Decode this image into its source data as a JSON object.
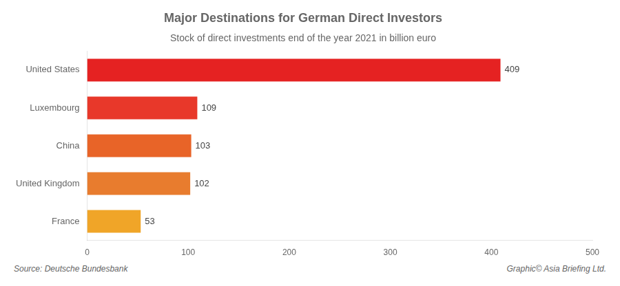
{
  "chart_data": {
    "type": "bar",
    "orientation": "horizontal",
    "title": "Major Destinations for German Direct Investors",
    "subtitle": "Stock of direct investments end of the year 2021 in billion euro",
    "annotations": [
      "Source: Deutsche Bundesbank",
      "Graphic© Asia Briefing Ltd."
    ],
    "categories": [
      "United States",
      "Luxembourg",
      "China",
      "United Kingdom",
      "France"
    ],
    "values": [
      409,
      109,
      103,
      102,
      53
    ],
    "colors": [
      "#e52222",
      "#e8382a",
      "#e86428",
      "#e87c2e",
      "#f0a528"
    ],
    "xlim": [
      0,
      500
    ],
    "xticks": [
      0,
      100,
      200,
      300,
      400,
      500
    ],
    "grid": false,
    "data_labels": true
  }
}
